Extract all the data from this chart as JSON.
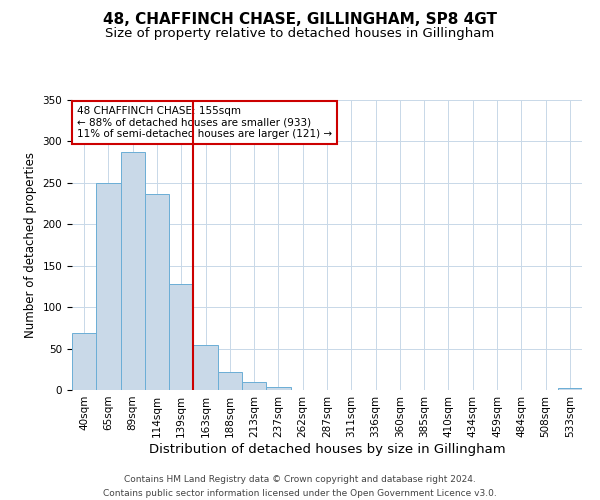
{
  "title": "48, CHAFFINCH CHASE, GILLINGHAM, SP8 4GT",
  "subtitle": "Size of property relative to detached houses in Gillingham",
  "xlabel": "Distribution of detached houses by size in Gillingham",
  "ylabel": "Number of detached properties",
  "bin_labels": [
    "40sqm",
    "65sqm",
    "89sqm",
    "114sqm",
    "139sqm",
    "163sqm",
    "188sqm",
    "213sqm",
    "237sqm",
    "262sqm",
    "287sqm",
    "311sqm",
    "336sqm",
    "360sqm",
    "385sqm",
    "410sqm",
    "434sqm",
    "459sqm",
    "484sqm",
    "508sqm",
    "533sqm"
  ],
  "bin_values": [
    69,
    250,
    287,
    236,
    128,
    54,
    22,
    10,
    4,
    0,
    0,
    0,
    0,
    0,
    0,
    0,
    0,
    0,
    0,
    0,
    3
  ],
  "bar_color": "#c9d9e8",
  "bar_edge_color": "#6baed6",
  "vline_color": "#cc0000",
  "vline_bin_edge": 4.5,
  "annotation_title": "48 CHAFFINCH CHASE: 155sqm",
  "annotation_line1": "← 88% of detached houses are smaller (933)",
  "annotation_line2": "11% of semi-detached houses are larger (121) →",
  "annotation_box_color": "#ffffff",
  "annotation_box_edge": "#cc0000",
  "ylim": [
    0,
    350
  ],
  "yticks": [
    0,
    50,
    100,
    150,
    200,
    250,
    300,
    350
  ],
  "footnote1": "Contains HM Land Registry data © Crown copyright and database right 2024.",
  "footnote2": "Contains public sector information licensed under the Open Government Licence v3.0.",
  "title_fontsize": 11,
  "subtitle_fontsize": 9.5,
  "xlabel_fontsize": 9.5,
  "ylabel_fontsize": 8.5,
  "tick_fontsize": 7.5,
  "annotation_fontsize": 7.5,
  "footnote_fontsize": 6.5
}
